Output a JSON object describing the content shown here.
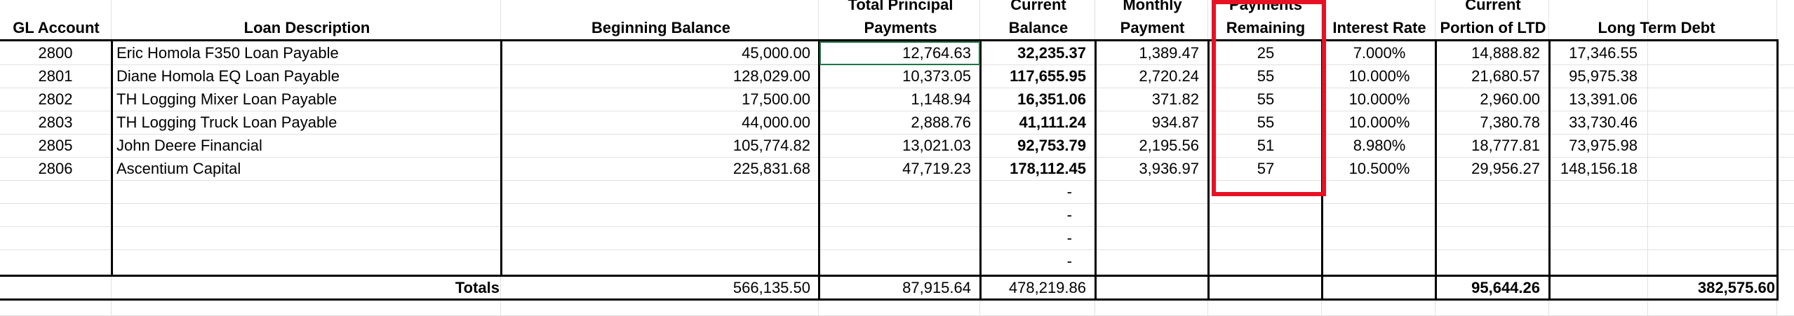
{
  "headers": {
    "gl_account": "GL Account",
    "loan_description": "Loan Description",
    "beginning_balance": "Beginning Balance",
    "total_principal_1": "Total Principal",
    "total_principal_2": "Payments",
    "current_balance_1": "Current",
    "current_balance_2": "Balance",
    "monthly_payment_1": "Monthly",
    "monthly_payment_2": "Payment",
    "payments_remaining_1": "Payments",
    "payments_remaining_2": "Remaining",
    "interest_rate": "Interest Rate",
    "current_portion_1": "Current",
    "current_portion_2": "Portion of LTD",
    "long_term_debt": "Long Term Debt"
  },
  "rows": [
    {
      "gl": "2800",
      "desc": "Eric Homola F350 Loan Payable",
      "begin": "45,000.00",
      "principal": "12,764.63",
      "current": "32,235.37",
      "monthly": "1,389.47",
      "remaining": "25",
      "rate": "7.000%",
      "portion": "14,888.82",
      "ltd": "17,346.55"
    },
    {
      "gl": "2801",
      "desc": "Diane Homola EQ Loan Payable",
      "begin": "128,029.00",
      "principal": "10,373.05",
      "current": "117,655.95",
      "monthly": "2,720.24",
      "remaining": "55",
      "rate": "10.000%",
      "portion": "21,680.57",
      "ltd": "95,975.38"
    },
    {
      "gl": "2802",
      "desc": "TH Logging Mixer Loan Payable",
      "begin": "17,500.00",
      "principal": "1,148.94",
      "current": "16,351.06",
      "monthly": "371.82",
      "remaining": "55",
      "rate": "10.000%",
      "portion": "2,960.00",
      "ltd": "13,391.06"
    },
    {
      "gl": "2803",
      "desc": "TH Logging Truck Loan Payable",
      "begin": "44,000.00",
      "principal": "2,888.76",
      "current": "41,111.24",
      "monthly": "934.87",
      "remaining": "55",
      "rate": "10.000%",
      "portion": "7,380.78",
      "ltd": "33,730.46"
    },
    {
      "gl": "2805",
      "desc": "John Deere Financial",
      "begin": "105,774.82",
      "principal": "13,021.03",
      "current": "92,753.79",
      "monthly": "2,195.56",
      "remaining": "51",
      "rate": "8.980%",
      "portion": "18,777.81",
      "ltd": "73,975.98"
    },
    {
      "gl": "2806",
      "desc": "Ascentium Capital",
      "begin": "225,831.68",
      "principal": "47,719.23",
      "current": "178,112.45",
      "monthly": "3,936.97",
      "remaining": "57",
      "rate": "10.500%",
      "portion": "29,956.27",
      "ltd": "148,156.18"
    }
  ],
  "empty_row_dashes": [
    "-",
    "-",
    "-",
    "-"
  ],
  "totals": {
    "label": "Totals",
    "begin": "566,135.50",
    "principal": "87,915.64",
    "current": "478,219.86",
    "portion": "95,644.26",
    "ltd": "382,575.60"
  },
  "highlight_color": "#e81123",
  "selection_color": "#217346"
}
